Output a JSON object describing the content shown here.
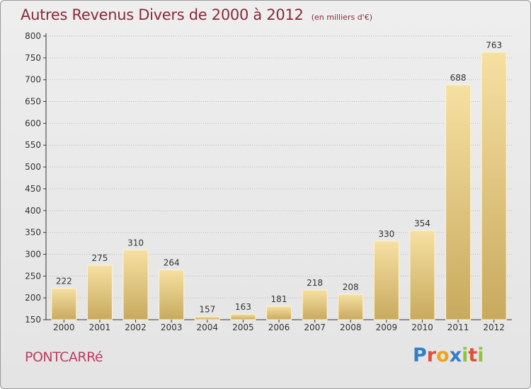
{
  "header": {
    "title": "Autres Revenus Divers de 2000 à 2012",
    "subtitle": "(en milliers d'€)"
  },
  "footer": {
    "place": "PONTCARRé",
    "brand": "Proxiti",
    "brand_letters": [
      {
        "char": "P",
        "color": "#2f7fc8"
      },
      {
        "char": "r",
        "color": "#e24e3b"
      },
      {
        "char": "o",
        "color": "#f0a21c"
      },
      {
        "char": "x",
        "color": "#2f7fc8"
      },
      {
        "char": "i",
        "color": "#8cc63e"
      },
      {
        "char": "t",
        "color": "#e24e3b"
      },
      {
        "char": "i",
        "color": "#8cc63e"
      }
    ]
  },
  "colors": {
    "title": "#8a2a3a",
    "place": "#c23a63",
    "bar_light": "#f6e0a2",
    "bar_dark": "#c8aa5e",
    "grid": "#b8b8b8",
    "axis": "#333333"
  },
  "chart_data": {
    "type": "bar",
    "categories": [
      "2000",
      "2001",
      "2002",
      "2003",
      "2004",
      "2005",
      "2006",
      "2007",
      "2008",
      "2009",
      "2010",
      "2011",
      "2012"
    ],
    "values": [
      222,
      275,
      310,
      264,
      157,
      163,
      181,
      218,
      208,
      330,
      354,
      688,
      763
    ],
    "data_labels": [
      "222",
      "275",
      "310",
      "264",
      "157",
      "163",
      "181",
      "218",
      "208",
      "330",
      "354",
      "688",
      "763"
    ],
    "ylim": [
      150,
      800
    ],
    "yticks": [
      150,
      200,
      250,
      300,
      350,
      400,
      450,
      500,
      550,
      600,
      650,
      700,
      750,
      800
    ],
    "grid": true,
    "xlabel": "",
    "ylabel": ""
  }
}
